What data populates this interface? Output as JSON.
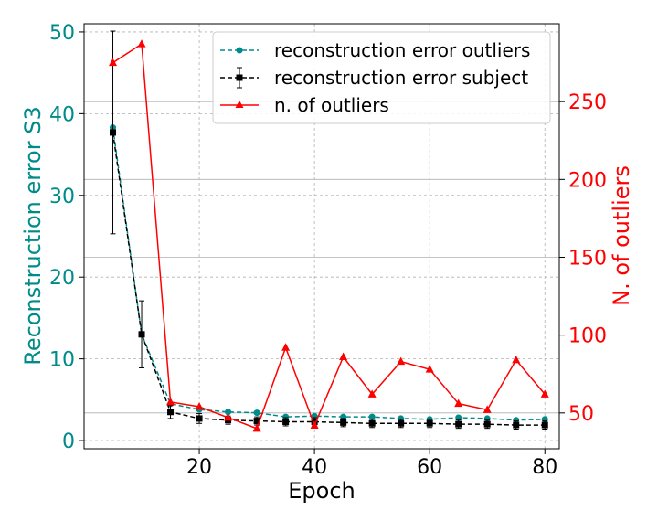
{
  "chart_data": {
    "type": "line",
    "xlabel": "Epoch",
    "ylabel_left": "Reconstruction error S3",
    "ylabel_right": "N. of outliers",
    "x_ticks": [
      20,
      40,
      60,
      80
    ],
    "y_left_ticks": [
      0,
      10,
      20,
      30,
      40,
      50
    ],
    "y_right_ticks": [
      50,
      100,
      150,
      200,
      250
    ],
    "xlim": [
      0,
      82.5
    ],
    "ylim_left": [
      -1,
      51
    ],
    "ylim_right": [
      27,
      300
    ],
    "grid": true,
    "legend_position": "top-right",
    "colors": {
      "left_axis": "#008b8b",
      "right_axis": "#ff0000",
      "outliers_err": "#008b8b",
      "subject_err": "#000000",
      "n_outliers": "#ff0000"
    },
    "series": [
      {
        "name": "reconstruction error outliers",
        "axis": "left",
        "style": "dashed-circle",
        "x": [
          5,
          10,
          15,
          20,
          25,
          30,
          35,
          40,
          45,
          50,
          55,
          60,
          65,
          70,
          75,
          80
        ],
        "values": [
          38.3,
          13.0,
          4.5,
          3.8,
          3.5,
          3.4,
          2.9,
          3.0,
          2.9,
          2.9,
          2.7,
          2.6,
          2.8,
          2.7,
          2.5,
          2.6
        ]
      },
      {
        "name": "reconstruction error subject",
        "axis": "left",
        "style": "dashed-square-errorbar",
        "x": [
          5,
          10,
          15,
          20,
          25,
          30,
          35,
          40,
          45,
          50,
          55,
          60,
          65,
          70,
          75,
          80
        ],
        "values": [
          37.7,
          13.0,
          3.5,
          2.7,
          2.5,
          2.4,
          2.3,
          2.3,
          2.2,
          2.1,
          2.1,
          2.1,
          2.0,
          2.0,
          1.9,
          1.9
        ],
        "errors": [
          12.4,
          4.1,
          0.8,
          0.6,
          0.5,
          0.5,
          0.5,
          0.5,
          0.5,
          0.5,
          0.5,
          0.5,
          0.5,
          0.5,
          0.5,
          0.5
        ]
      },
      {
        "name": "n. of outliers",
        "axis": "right",
        "style": "solid-triangle",
        "x": [
          5,
          10,
          15,
          20,
          25,
          30,
          35,
          40,
          45,
          50,
          55,
          60,
          65,
          70,
          75,
          80
        ],
        "values": [
          275,
          287,
          57,
          54,
          47,
          40,
          92,
          42,
          86,
          62,
          83,
          78,
          56,
          52,
          84,
          62
        ]
      }
    ]
  }
}
